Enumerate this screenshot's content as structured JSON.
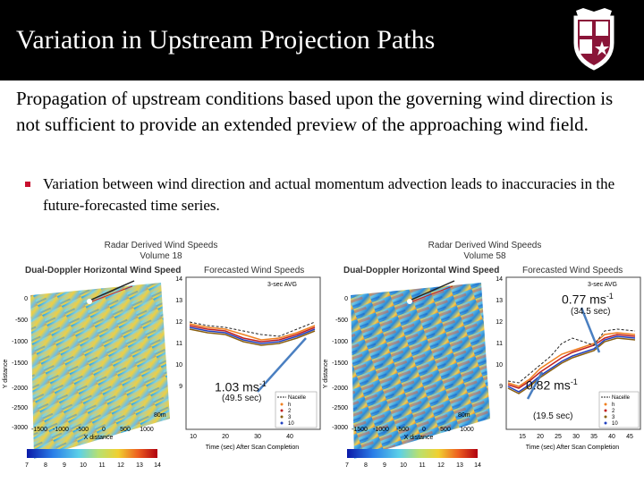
{
  "slide": {
    "title": "Variation in Upstream Projection Paths",
    "intro": "Propagation of upstream conditions based upon the governing wind direction is not sufficient to provide an extended preview of the approaching wind field.",
    "bullet": "Variation between wind direction and actual momentum advection leads to inaccuracies in the future-forecasted time series."
  },
  "colors": {
    "title_bg": "#000000",
    "bullet_marker": "#c8102e",
    "arrow": "#4a7fc1"
  },
  "icons": {
    "logo": "university-shield-logo"
  },
  "panels": [
    {
      "header_line1": "Radar Derived Wind Speeds",
      "header_line2": "Volume 18",
      "map_title": "Dual-Doppler Horizontal Wind Speed",
      "map_xlabel": "X distance",
      "map_ylabel": "Y distance",
      "map_xticks": [
        "-1500",
        "-1000",
        "-500",
        "0",
        "500",
        "1000"
      ],
      "map_yticks": [
        "0",
        "-500",
        "-1000",
        "-1500",
        "-2000",
        "-2500",
        "-3000"
      ],
      "colorbar_ticks": [
        "7",
        "8",
        "9",
        "10",
        "11",
        "12",
        "13",
        "14"
      ],
      "scale_label": "80m",
      "chart_title": "Forecasted Wind Speeds",
      "chart_avg_label": "3-sec AVG",
      "chart_xlabel": "Time (sec) After Scan Completion",
      "chart_yticks": [
        "14",
        "13",
        "12",
        "11",
        "10",
        "9"
      ],
      "chart_xticks": [
        "10",
        "20",
        "30",
        "40"
      ],
      "legend": [
        "Nacelle",
        "h",
        "2",
        "3",
        "10"
      ],
      "annotation_value": "1.03 ms",
      "annotation_sup": "-1",
      "annotation_time": "(49.5 sec)"
    },
    {
      "header_line1": "Radar Derived Wind Speeds",
      "header_line2": "Volume 58",
      "map_title": "Dual-Doppler Horizontal Wind Speed",
      "map_xlabel": "X distance",
      "map_ylabel": "Y distance",
      "map_xticks": [
        "-1500",
        "-1000",
        "-500",
        "0",
        "500",
        "1000"
      ],
      "map_yticks": [
        "0",
        "-500",
        "-1000",
        "-1500",
        "-2000",
        "-2500",
        "-3000"
      ],
      "colorbar_ticks": [
        "7",
        "8",
        "9",
        "10",
        "11",
        "12",
        "13",
        "14"
      ],
      "scale_label": "80m",
      "chart_title": "Forecasted Wind Speeds",
      "chart_avg_label": "3-sec AVG",
      "chart_xlabel": "Time (sec) After Scan Completion",
      "chart_yticks": [
        "14",
        "13",
        "12",
        "11",
        "10",
        "9"
      ],
      "chart_xticks": [
        "15",
        "20",
        "25",
        "30",
        "35",
        "40",
        "45"
      ],
      "legend": [
        "Nacelle",
        "h",
        "2",
        "3",
        "10"
      ],
      "annotation_value": "0.77 ms",
      "annotation_sup": "-1",
      "annotation_time": "(34.5 sec)",
      "annotation2_value": "0.82 ms",
      "annotation2_sup": "-1",
      "annotation2_time": "(19.5 sec)"
    }
  ]
}
